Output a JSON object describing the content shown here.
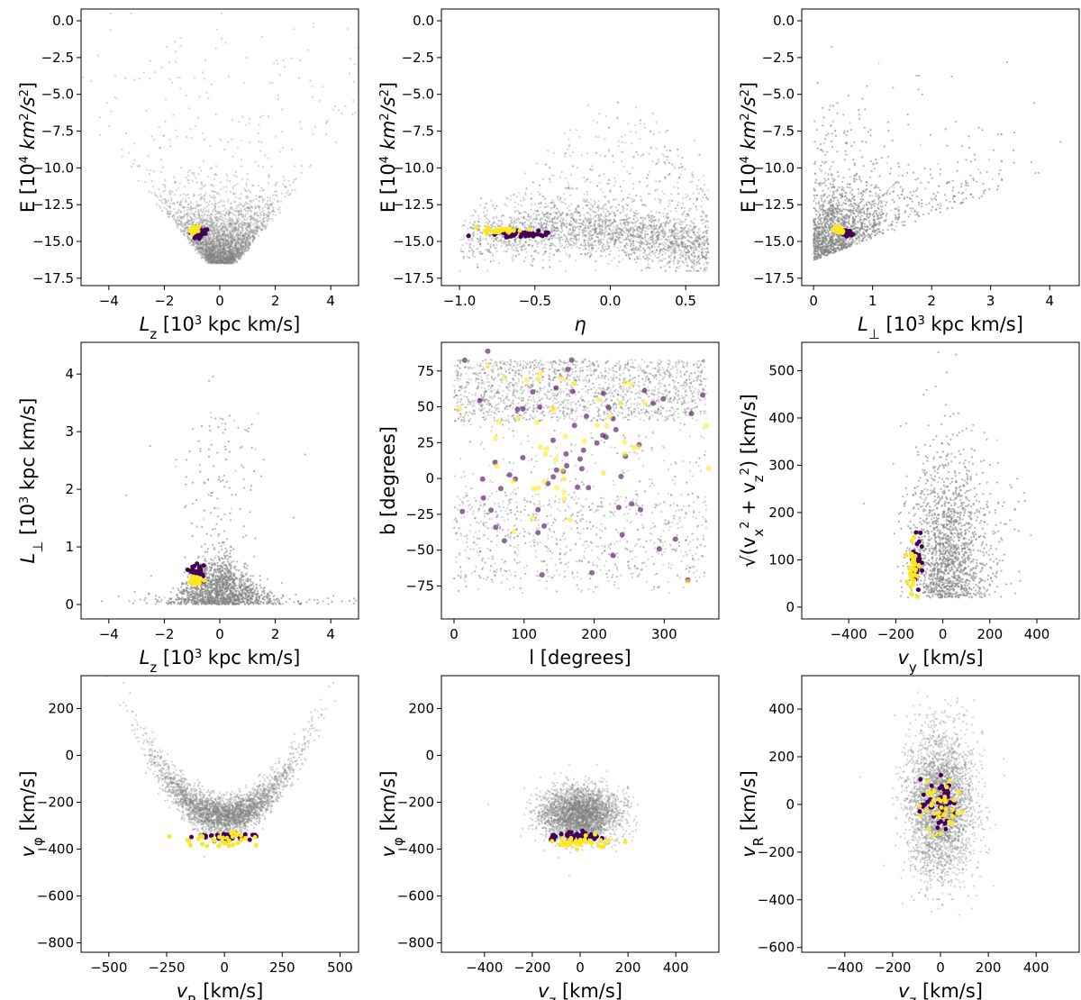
{
  "colors": {
    "background": "#808080",
    "group_a": "#440154",
    "group_b": "#fde725"
  },
  "chart_data": [
    {
      "type": "scatter",
      "id": "e-lz",
      "xlabel": "L_z [10^3 kpc km/s]",
      "ylabel": "E [10^4 km^2/s^2]",
      "xlim": [
        -5,
        5
      ],
      "ylim": [
        -18,
        0.8
      ],
      "xticks": [
        "-4",
        "-2",
        "0",
        "2",
        "4"
      ],
      "xtick_values": [
        -4,
        -2,
        0,
        2,
        4
      ],
      "yticks": [
        "-17.5",
        "-15.0",
        "-12.5",
        "-10.0",
        "-7.5",
        "-5.0",
        "-2.5",
        "0.0"
      ],
      "ytick_values": [
        -17.5,
        -15.0,
        -12.5,
        -10.0,
        -7.5,
        -5.0,
        -2.5,
        0.0
      ],
      "background": {
        "shape": "vee",
        "center": [
          0,
          -16
        ],
        "points": 3200
      },
      "series": [
        {
          "color": "group_a",
          "center": [
            -0.75,
            -14.45
          ],
          "spread": [
            0.15,
            0.18
          ],
          "n": 40
        },
        {
          "color": "group_b",
          "center": [
            -0.95,
            -14.2
          ],
          "spread": [
            0.08,
            0.1
          ],
          "n": 28
        }
      ]
    },
    {
      "type": "scatter",
      "id": "e-eta",
      "xlabel": "η",
      "ylabel": "E [10^4 km^2/s^2]",
      "xlim": [
        -1.12,
        0.72
      ],
      "ylim": [
        -18,
        0.8
      ],
      "xticks": [
        "-1.0",
        "-0.5",
        "0.0",
        "0.5"
      ],
      "xtick_values": [
        -1.0,
        -0.5,
        0.0,
        0.5
      ],
      "yticks": [
        "-17.5",
        "-15.0",
        "-12.5",
        "-10.0",
        "-7.5",
        "-5.0",
        "-2.5",
        "0.0"
      ],
      "ytick_values": [
        -17.5,
        -15.0,
        -12.5,
        -10.0,
        -7.5,
        -5.0,
        -2.5,
        0.0
      ],
      "background": {
        "shape": "eta",
        "center": [
          0.15,
          -14.5
        ],
        "points": 3200
      },
      "series": [
        {
          "color": "group_a",
          "center": [
            -0.6,
            -14.45
          ],
          "spread": [
            0.1,
            0.1
          ],
          "n": 45
        },
        {
          "color": "group_b",
          "center": [
            -0.72,
            -14.25
          ],
          "spread": [
            0.08,
            0.1
          ],
          "n": 30
        }
      ]
    },
    {
      "type": "scatter",
      "id": "e-lperp",
      "xlabel": "L_⊥ [10^3 kpc km/s]",
      "ylabel": "E [10^4 km^2/s^2]",
      "xlim": [
        -0.2,
        4.5
      ],
      "ylim": [
        -18,
        0.8
      ],
      "xticks": [
        "0",
        "1",
        "2",
        "3",
        "4"
      ],
      "xtick_values": [
        0,
        1,
        2,
        3,
        4
      ],
      "yticks": [
        "-17.5",
        "-15.0",
        "-12.5",
        "-10.0",
        "-7.5",
        "-5.0",
        "-2.5",
        "0.0"
      ],
      "ytick_values": [
        -17.5,
        -15.0,
        -12.5,
        -10.0,
        -7.5,
        -5.0,
        -2.5,
        0.0
      ],
      "background": {
        "shape": "lperp",
        "center": [
          0.4,
          -14.5
        ],
        "points": 3200
      },
      "series": [
        {
          "color": "group_a",
          "center": [
            0.55,
            -14.45
          ],
          "spread": [
            0.06,
            0.12
          ],
          "n": 35
        },
        {
          "color": "group_b",
          "center": [
            0.42,
            -14.2
          ],
          "spread": [
            0.05,
            0.1
          ],
          "n": 25
        }
      ]
    },
    {
      "type": "scatter",
      "id": "lperp-lz",
      "xlabel": "L_z [10^3 kpc km/s]",
      "ylabel": "L_⊥ [10^3 kpc km/s]",
      "xlim": [
        -5,
        5
      ],
      "ylim": [
        -0.25,
        4.55
      ],
      "xticks": [
        "-4",
        "-2",
        "0",
        "2",
        "4"
      ],
      "xtick_values": [
        -4,
        -2,
        0,
        2,
        4
      ],
      "yticks": [
        "0",
        "1",
        "2",
        "3",
        "4"
      ],
      "ytick_values": [
        0,
        1,
        2,
        3,
        4
      ],
      "background": {
        "shape": "dome",
        "center": [
          0,
          0.2
        ],
        "points": 3200
      },
      "series": [
        {
          "color": "group_a",
          "center": [
            -0.8,
            0.55
          ],
          "spread": [
            0.12,
            0.06
          ],
          "n": 35
        },
        {
          "color": "group_b",
          "center": [
            -0.9,
            0.42
          ],
          "spread": [
            0.12,
            0.04
          ],
          "n": 25
        }
      ]
    },
    {
      "type": "scatter",
      "id": "b-l",
      "xlabel": "l [degrees]",
      "ylabel": "b [degrees]",
      "xlim": [
        -18,
        378
      ],
      "ylim": [
        -98,
        95
      ],
      "xticks": [
        "0",
        "100",
        "200",
        "300"
      ],
      "xtick_values": [
        0,
        100,
        200,
        300
      ],
      "yticks": [
        "-75",
        "-50",
        "-25",
        "0",
        "25",
        "50",
        "75"
      ],
      "ytick_values": [
        -75,
        -50,
        -25,
        0,
        25,
        50,
        75
      ],
      "background": {
        "shape": "sky",
        "center": [
          180,
          0
        ],
        "points": 3200
      },
      "series": [
        {
          "color": "group_a",
          "center": [
            150,
            30
          ],
          "spread": [
            90,
            45
          ],
          "n": 70
        },
        {
          "color": "group_b",
          "center": [
            180,
            30
          ],
          "spread": [
            100,
            45
          ],
          "n": 55
        }
      ]
    },
    {
      "type": "scatter",
      "id": "vperp-vy",
      "xlabel": "v_y [km/s]",
      "ylabel": "√(v_x^2 + v_z^2) [km/s]",
      "xlim": [
        -600,
        580
      ],
      "ylim": [
        -25,
        560
      ],
      "xticks": [
        "-400",
        "-200",
        "0",
        "200",
        "400"
      ],
      "xtick_values": [
        -400,
        -200,
        0,
        200,
        400
      ],
      "yticks": [
        "0",
        "100",
        "200",
        "300",
        "400",
        "500"
      ],
      "ytick_values": [
        0,
        100,
        200,
        300,
        400,
        500
      ],
      "background": {
        "shape": "vy",
        "center": [
          0,
          120
        ],
        "points": 3200
      },
      "series": [
        {
          "color": "group_a",
          "center": [
            -110,
            90
          ],
          "spread": [
            12,
            25
          ],
          "n": 45
        },
        {
          "color": "group_b",
          "center": [
            -125,
            85
          ],
          "spread": [
            12,
            28
          ],
          "n": 35
        }
      ]
    },
    {
      "type": "scatter",
      "id": "vphi-vr",
      "xlabel": "v_R [km/s]",
      "ylabel": "v_φ [km/s]",
      "xlim": [
        -620,
        580
      ],
      "ylim": [
        -840,
        340
      ],
      "xticks": [
        "-500",
        "-250",
        "0",
        "250",
        "500"
      ],
      "xtick_values": [
        -500,
        -250,
        0,
        250,
        500
      ],
      "yticks": [
        "-800",
        "-600",
        "-400",
        "-200",
        "0",
        "200"
      ],
      "ytick_values": [
        -800,
        -600,
        -400,
        -200,
        0,
        200
      ],
      "background": {
        "shape": "smile",
        "center": [
          0,
          -260
        ],
        "points": 3200
      },
      "series": [
        {
          "color": "group_a",
          "center": [
            0,
            -345
          ],
          "spread": [
            70,
            10
          ],
          "n": 45
        },
        {
          "color": "group_b",
          "center": [
            -20,
            -360
          ],
          "spread": [
            90,
            18
          ],
          "n": 35
        }
      ]
    },
    {
      "type": "scatter",
      "id": "vphi-vz",
      "xlabel": "v_z [km/s]",
      "ylabel": "v_φ [km/s]",
      "xlim": [
        -580,
        580
      ],
      "ylim": [
        -840,
        340
      ],
      "xticks": [
        "-400",
        "-200",
        "0",
        "200",
        "400"
      ],
      "xtick_values": [
        -400,
        -200,
        0,
        200,
        400
      ],
      "yticks": [
        "-800",
        "-600",
        "-400",
        "-200",
        "0",
        "200"
      ],
      "ytick_values": [
        -800,
        -600,
        -400,
        -200,
        0,
        200
      ],
      "background": {
        "shape": "blob",
        "center": [
          0,
          -260
        ],
        "points": 3200
      },
      "series": [
        {
          "color": "group_a",
          "center": [
            0,
            -345
          ],
          "spread": [
            55,
            10
          ],
          "n": 45
        },
        {
          "color": "group_b",
          "center": [
            0,
            -370
          ],
          "spread": [
            60,
            15
          ],
          "n": 35
        }
      ]
    },
    {
      "type": "scatter",
      "id": "vr-vz",
      "xlabel": "v_z [km/s]",
      "ylabel": "v_R [km/s]",
      "xlim": [
        -580,
        580
      ],
      "ylim": [
        -620,
        540
      ],
      "xticks": [
        "-400",
        "-200",
        "0",
        "200",
        "400"
      ],
      "xtick_values": [
        -400,
        -200,
        0,
        200,
        400
      ],
      "yticks": [
        "-600",
        "-400",
        "-200",
        "0",
        "200",
        "400"
      ],
      "ytick_values": [
        -600,
        -400,
        -200,
        0,
        200,
        400
      ],
      "background": {
        "shape": "column",
        "center": [
          0,
          0
        ],
        "points": 3200
      },
      "series": [
        {
          "color": "group_a",
          "center": [
            0,
            0
          ],
          "spread": [
            40,
            60
          ],
          "n": 45
        },
        {
          "color": "group_b",
          "center": [
            0,
            0
          ],
          "spread": [
            45,
            65
          ],
          "n": 35
        }
      ]
    }
  ]
}
